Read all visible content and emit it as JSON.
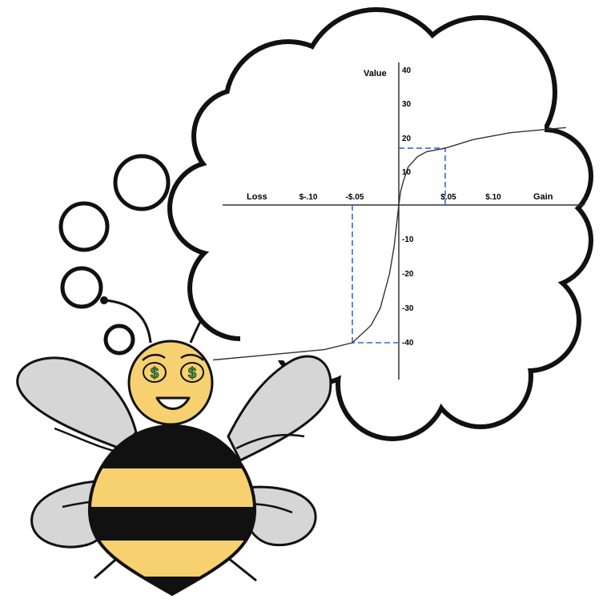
{
  "chart_data": {
    "type": "line",
    "title": "",
    "xlabel": "Gain",
    "xlabel_negative": "Loss",
    "ylabel": "Value",
    "x_tick_labels": [
      "$-.10",
      "-$.05",
      "$.05",
      "$.10"
    ],
    "y_tick_labels": [
      "40",
      "30",
      "20",
      "10",
      "-10",
      "-20",
      "-30",
      "-40"
    ],
    "xlim": [
      -0.21,
      0.23
    ],
    "ylim": [
      -50,
      40
    ],
    "series": [
      {
        "x": [
          -0.2,
          -0.12,
          -0.08,
          -0.05,
          -0.03,
          -0.02,
          -0.01,
          -0.005,
          0,
          0.002,
          0.005,
          0.01,
          0.02,
          0.03,
          0.05,
          0.08,
          0.12,
          0.16,
          0.18
        ],
        "y": [
          -45,
          -43,
          -42,
          -40,
          -35,
          -30,
          -20,
          -12,
          0,
          4,
          7,
          11,
          14,
          15.5,
          16.5,
          19,
          21,
          22,
          22.5
        ]
      }
    ],
    "reference_points": [
      {
        "x": 0.05,
        "y": 16.5
      },
      {
        "x": -0.05,
        "y": -40
      }
    ],
    "colors": {
      "curve": "#333333",
      "reference_lines": "#3a64e8"
    }
  },
  "illustration": {
    "subject": "bee",
    "eye_symbol": "$",
    "colors": {
      "body_yellow": "#f7d070",
      "stripe_black": "#111111",
      "wing_gray": "#d6d6d6",
      "eye_green": "#2fa84f"
    }
  }
}
